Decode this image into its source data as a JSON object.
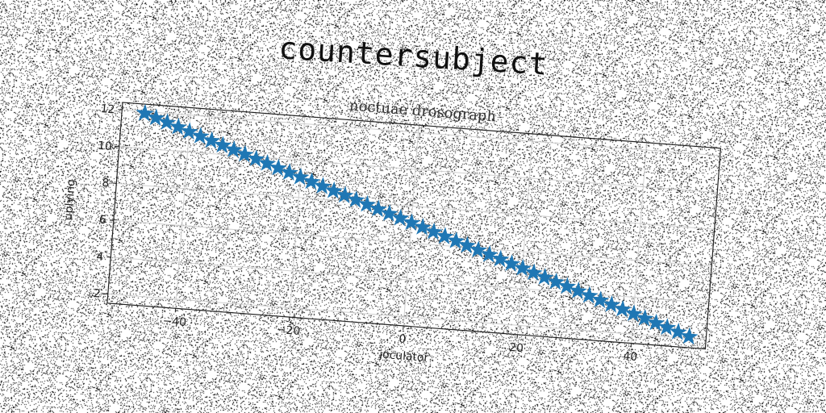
{
  "suptitle": "countersubject",
  "chart_data": {
    "type": "scatter",
    "title": "noctuae drosograph",
    "xlabel": "joculator",
    "ylabel": "uplying",
    "xlim": [
      -52,
      53
    ],
    "ylim": [
      1.5,
      12.4
    ],
    "xticks": [
      -40,
      -20,
      0,
      20,
      40
    ],
    "yticks": [
      2,
      4,
      6,
      8,
      10,
      12
    ],
    "grid": true,
    "marker": "star",
    "color": "#1f77b4",
    "series": [
      {
        "x": [
          -48,
          -46,
          -44,
          -42,
          -40,
          -38,
          -36,
          -34,
          -32,
          -30,
          -28,
          -26,
          -24,
          -22,
          -20,
          -18,
          -16,
          -14,
          -12,
          -10,
          -8,
          -6,
          -4,
          -2,
          0,
          2,
          4,
          6,
          8,
          10,
          12,
          14,
          16,
          18,
          20,
          22,
          24,
          26,
          28,
          30,
          32,
          34,
          36,
          38,
          40,
          42,
          44,
          46,
          48,
          50
        ],
        "y": [
          11.9,
          11.7,
          11.5,
          11.3,
          11.1,
          10.9,
          10.7,
          10.5,
          10.3,
          10.1,
          9.9,
          9.7,
          9.5,
          9.3,
          9.1,
          8.9,
          8.7,
          8.5,
          8.3,
          8.1,
          7.9,
          7.7,
          7.5,
          7.3,
          7.1,
          6.9,
          6.7,
          6.5,
          6.3,
          6.1,
          5.9,
          5.7,
          5.5,
          5.3,
          5.1,
          4.9,
          4.7,
          4.5,
          4.3,
          4.1,
          3.9,
          3.7,
          3.5,
          3.3,
          3.1,
          2.9,
          2.7,
          2.5,
          2.3,
          2.1
        ]
      }
    ]
  }
}
